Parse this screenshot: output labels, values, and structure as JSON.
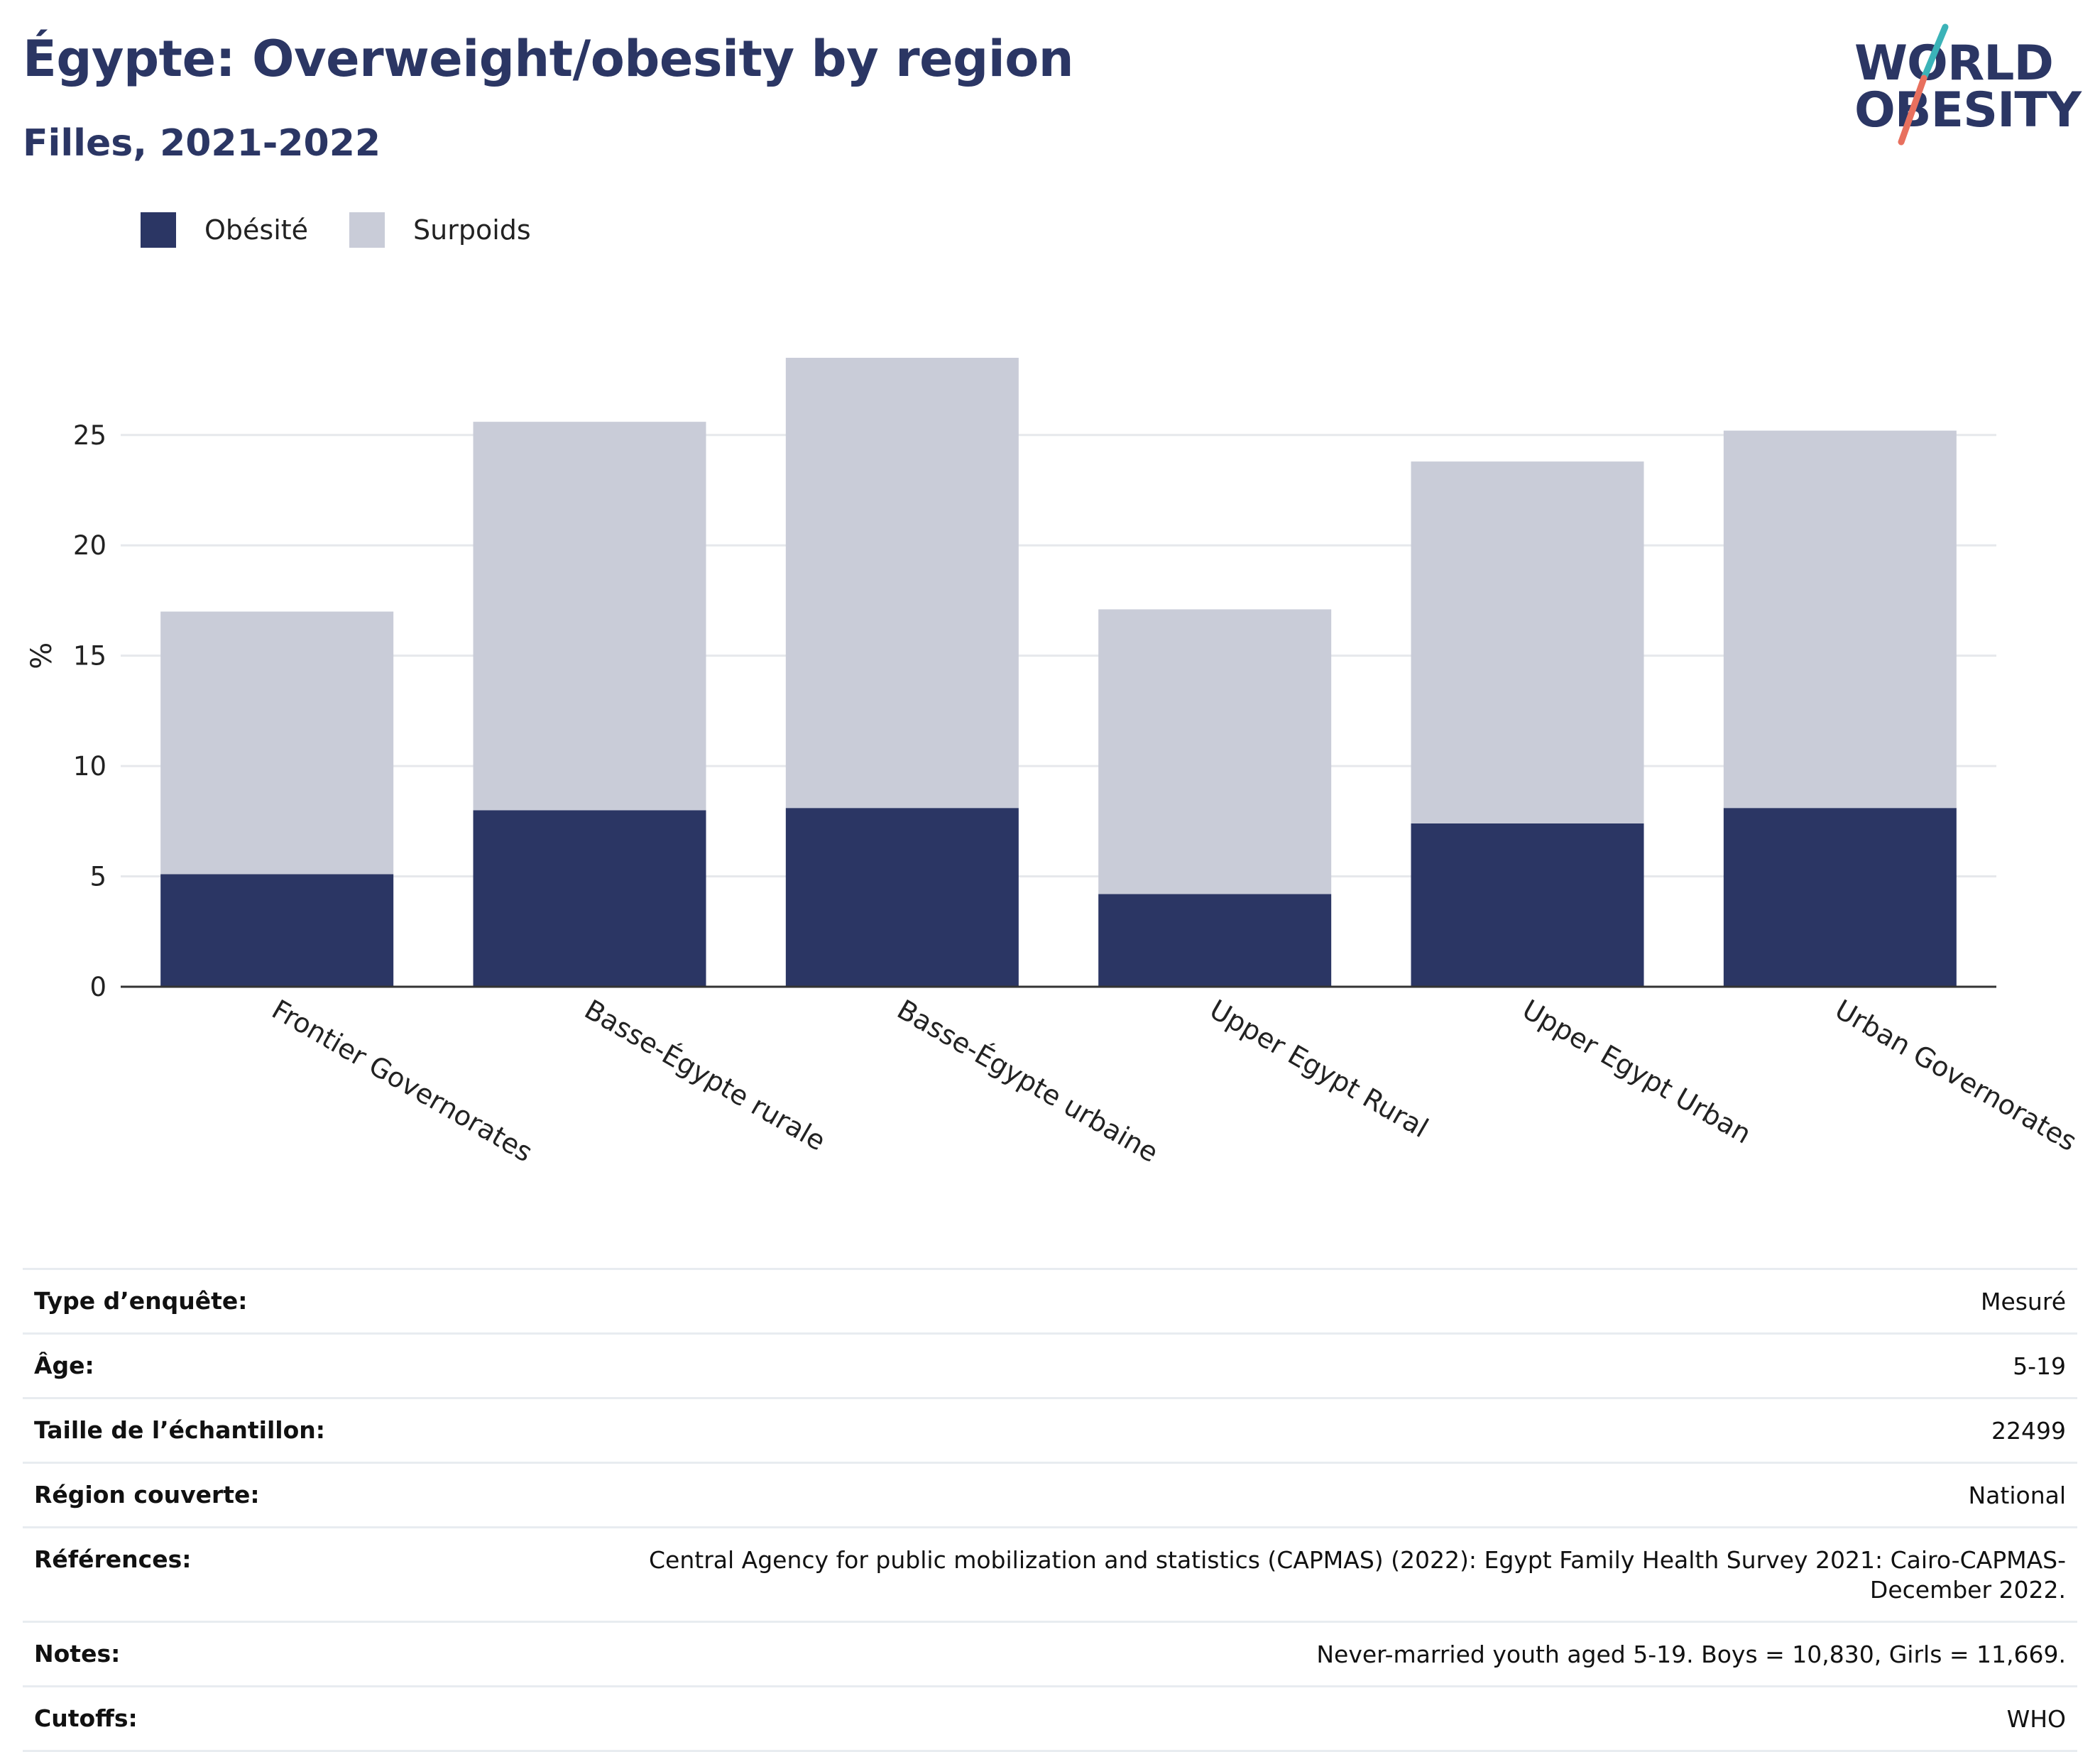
{
  "header": {
    "title": "Égypte: Overweight/obesity by region",
    "subtitle": "Filles, 2021-2022"
  },
  "logo": {
    "line1": "WORLD",
    "line2": "OBESITY",
    "colors": {
      "text": "#2b3664",
      "slash_top": "#3bb3b8",
      "slash_bottom": "#e8705e"
    }
  },
  "legend": [
    {
      "label": "Obésité",
      "color": "#2b3664"
    },
    {
      "label": "Surpoids",
      "color": "#c9ccd8"
    }
  ],
  "chart_data": {
    "type": "bar",
    "stacked": true,
    "title": "Égypte: Overweight/obesity by region",
    "subtitle": "Filles, 2021-2022",
    "xlabel": "",
    "ylabel": "%",
    "ylim": [
      0,
      28.5
    ],
    "yticks": [
      0,
      5,
      10,
      15,
      20,
      25
    ],
    "grid": true,
    "legend_position": "top-left",
    "categories": [
      "Frontier Governorates",
      "Basse-Égypte rurale",
      "Basse-Égypte urbaine",
      "Upper Egypt Rural",
      "Upper Egypt Urban",
      "Urban Governorates"
    ],
    "series": [
      {
        "name": "Obésité",
        "color": "#2b3664",
        "values": [
          5.1,
          8.0,
          8.1,
          4.2,
          7.4,
          8.1
        ]
      },
      {
        "name": "Surpoids",
        "color": "#c9ccd8",
        "values": [
          11.9,
          17.6,
          20.4,
          12.9,
          16.4,
          17.1
        ]
      }
    ]
  },
  "info_table": [
    {
      "key": "Type d’enquête:",
      "value": "Mesuré"
    },
    {
      "key": "Âge:",
      "value": "5-19"
    },
    {
      "key": "Taille de l’échantillon:",
      "value": "22499"
    },
    {
      "key": "Région couverte:",
      "value": "National"
    },
    {
      "key": "Références:",
      "value": "Central Agency for public mobilization and statistics (CAPMAS) (2022): Egypt Family Health Survey 2021: Cairo-CAPMAS-December 2022."
    },
    {
      "key": "Notes:",
      "value": "Never-married youth aged 5-19. Boys = 10,830, Girls = 11,669."
    },
    {
      "key": "Cutoffs:",
      "value": "WHO"
    }
  ]
}
